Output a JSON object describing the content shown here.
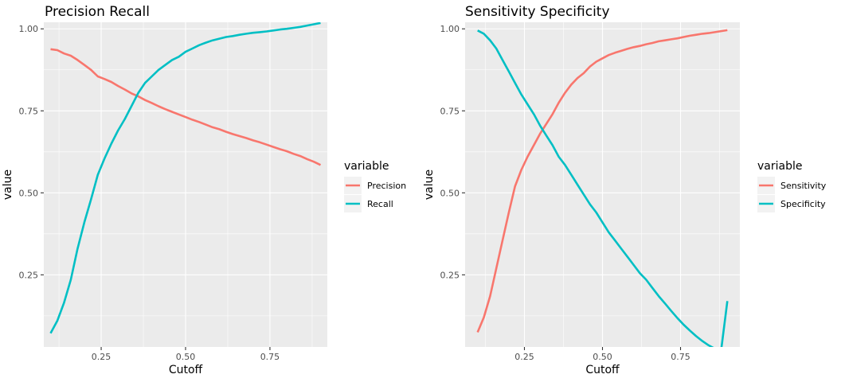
{
  "colors": {
    "series_a": "#F8766D",
    "series_b": "#00BFC4"
  },
  "chart_data": [
    {
      "type": "line",
      "title": "Precision Recall",
      "xlabel": "Cutoff",
      "ylabel": "value",
      "xlim": [
        0.08,
        0.92
      ],
      "ylim": [
        0.03,
        1.02
      ],
      "x_ticks": [
        0.25,
        0.5,
        0.75
      ],
      "x_tick_labels": [
        "0.25",
        "0.50",
        "0.75"
      ],
      "y_ticks": [
        0.25,
        0.5,
        0.75,
        1.0
      ],
      "y_tick_labels": [
        "0.25",
        "0.50",
        "0.75",
        "1.00"
      ],
      "grid": true,
      "legend": {
        "title": "variable",
        "position": "right"
      },
      "x": [
        0.1,
        0.12,
        0.14,
        0.16,
        0.18,
        0.2,
        0.22,
        0.24,
        0.26,
        0.28,
        0.3,
        0.32,
        0.34,
        0.36,
        0.38,
        0.4,
        0.42,
        0.44,
        0.46,
        0.48,
        0.5,
        0.52,
        0.54,
        0.56,
        0.58,
        0.6,
        0.62,
        0.64,
        0.66,
        0.68,
        0.7,
        0.72,
        0.74,
        0.76,
        0.78,
        0.8,
        0.82,
        0.84,
        0.86,
        0.88,
        0.9
      ],
      "series": [
        {
          "name": "Precision",
          "color": "#F8766D",
          "values": [
            0.938,
            0.935,
            0.925,
            0.918,
            0.905,
            0.89,
            0.875,
            0.855,
            0.847,
            0.838,
            0.826,
            0.815,
            0.803,
            0.794,
            0.783,
            0.774,
            0.764,
            0.755,
            0.747,
            0.739,
            0.731,
            0.723,
            0.716,
            0.708,
            0.7,
            0.694,
            0.686,
            0.679,
            0.673,
            0.667,
            0.66,
            0.654,
            0.647,
            0.64,
            0.633,
            0.627,
            0.619,
            0.612,
            0.603,
            0.595,
            0.585
          ]
        },
        {
          "name": "Recall",
          "color": "#00BFC4",
          "values": [
            0.072,
            0.11,
            0.165,
            0.235,
            0.33,
            0.41,
            0.48,
            0.555,
            0.605,
            0.65,
            0.69,
            0.725,
            0.765,
            0.805,
            0.835,
            0.855,
            0.875,
            0.89,
            0.905,
            0.915,
            0.93,
            0.94,
            0.95,
            0.958,
            0.965,
            0.97,
            0.975,
            0.978,
            0.982,
            0.985,
            0.988,
            0.99,
            0.992,
            0.995,
            0.998,
            1.0,
            1.003,
            1.006,
            1.01,
            1.014,
            1.018
          ]
        }
      ]
    },
    {
      "type": "line",
      "title": "Sensitivity Specificity",
      "xlabel": "Cutoff",
      "ylabel": "value",
      "xlim": [
        0.06,
        0.94
      ],
      "ylim": [
        0.03,
        1.02
      ],
      "x_ticks": [
        0.25,
        0.5,
        0.75
      ],
      "x_tick_labels": [
        "0.25",
        "0.50",
        "0.75"
      ],
      "y_ticks": [
        0.25,
        0.5,
        0.75,
        1.0
      ],
      "y_tick_labels": [
        "0.25",
        "0.50",
        "0.75",
        "1.00"
      ],
      "grid": true,
      "legend": {
        "title": "variable",
        "position": "right"
      },
      "x": [
        0.1,
        0.12,
        0.14,
        0.16,
        0.18,
        0.2,
        0.22,
        0.24,
        0.26,
        0.28,
        0.3,
        0.32,
        0.34,
        0.36,
        0.38,
        0.4,
        0.42,
        0.44,
        0.46,
        0.48,
        0.5,
        0.52,
        0.54,
        0.56,
        0.58,
        0.6,
        0.62,
        0.64,
        0.66,
        0.68,
        0.7,
        0.72,
        0.74,
        0.76,
        0.78,
        0.8,
        0.82,
        0.84,
        0.86,
        0.88,
        0.9
      ],
      "series": [
        {
          "name": "Sensitivity",
          "color": "#F8766D",
          "values": [
            0.075,
            0.12,
            0.185,
            0.27,
            0.355,
            0.44,
            0.52,
            0.57,
            0.61,
            0.645,
            0.68,
            0.71,
            0.74,
            0.775,
            0.805,
            0.83,
            0.85,
            0.865,
            0.885,
            0.9,
            0.91,
            0.92,
            0.927,
            0.933,
            0.939,
            0.944,
            0.948,
            0.953,
            0.957,
            0.962,
            0.965,
            0.968,
            0.971,
            0.975,
            0.979,
            0.982,
            0.985,
            0.987,
            0.99,
            0.993,
            0.996
          ]
        },
        {
          "name": "Specificity",
          "color": "#00BFC4",
          "values": [
            0.995,
            0.985,
            0.965,
            0.94,
            0.905,
            0.87,
            0.835,
            0.8,
            0.77,
            0.74,
            0.705,
            0.675,
            0.645,
            0.61,
            0.585,
            0.555,
            0.525,
            0.495,
            0.465,
            0.44,
            0.41,
            0.38,
            0.355,
            0.33,
            0.305,
            0.28,
            0.255,
            0.235,
            0.21,
            0.185,
            0.163,
            0.14,
            0.118,
            0.098,
            0.08,
            0.063,
            0.048,
            0.035,
            0.025,
            0.02,
            0.17
          ]
        }
      ]
    }
  ]
}
